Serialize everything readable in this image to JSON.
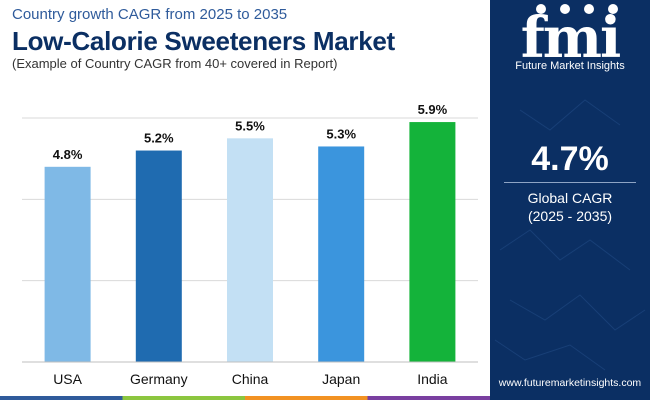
{
  "header": {
    "subtitle": "Country growth CAGR from 2025 to 2035",
    "title": "Low-Calorie Sweeteners Market",
    "note": "(Example of Country CAGR from 40+ covered in Report)"
  },
  "chart_data": {
    "type": "bar",
    "categories": [
      "USA",
      "Germany",
      "China",
      "Japan",
      "India"
    ],
    "values": [
      4.8,
      5.2,
      5.5,
      5.3,
      5.9
    ],
    "data_labels": [
      "4.8%",
      "5.2%",
      "5.5%",
      "5.3%",
      "5.9%"
    ],
    "colors": [
      "#7fb9e6",
      "#1f6bb0",
      "#c3e0f4",
      "#3b95dd",
      "#14b33a"
    ],
    "ylim": [
      0,
      6
    ],
    "grid": true,
    "xlabel": "",
    "ylabel": ""
  },
  "sidebar": {
    "logo_text": "fmi",
    "logo_subtitle": "Future Market Insights",
    "cagr_value": "4.7%",
    "cagr_label": "Global CAGR",
    "cagr_years": "(2025 - 2035)",
    "website": "www.futuremarketinsights.com"
  },
  "colors": {
    "title": "#0b2f63",
    "subtitle": "#2f5b9b",
    "sidebar_bg": "#0b2f63",
    "bar_strip": [
      "#2f5b9b",
      "#8cc63f",
      "#f29222",
      "#7a3fa0"
    ]
  }
}
